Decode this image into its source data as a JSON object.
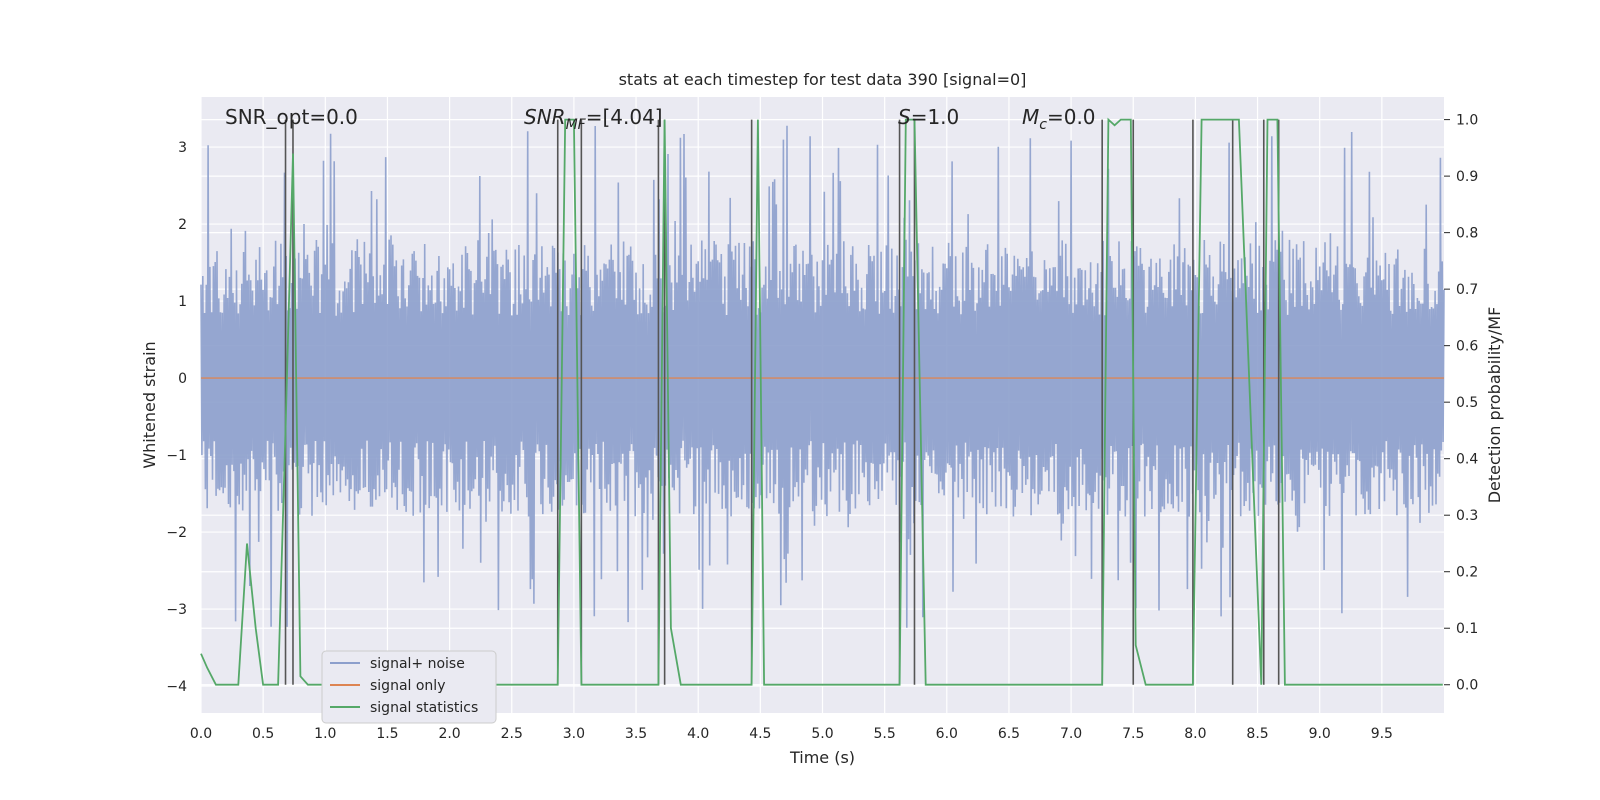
{
  "chart_data": {
    "type": "line",
    "title": "stats at each timestep for test data 390 [signal=0]",
    "xlabel": "Time (s)",
    "ylabel": "Whitened strain",
    "ylabel_right": "Detection probability/MF",
    "xlim": [
      0.0,
      10.0
    ],
    "ylim": [
      -4.35,
      3.65
    ],
    "ylim_right": [
      -0.05,
      1.04
    ],
    "x_ticks": [
      "0.0",
      "0.5",
      "1.0",
      "1.5",
      "2.0",
      "2.5",
      "3.0",
      "3.5",
      "4.0",
      "4.5",
      "5.0",
      "5.5",
      "6.0",
      "6.5",
      "7.0",
      "7.5",
      "8.0",
      "8.5",
      "9.0",
      "9.5"
    ],
    "y_ticks": [
      "3",
      "2",
      "1",
      "0",
      "−1",
      "−2",
      "−3",
      "−4"
    ],
    "y_tick_values": [
      3,
      2,
      1,
      0,
      -1,
      -2,
      -3,
      -4
    ],
    "y_ticks_right": [
      "1.0",
      "0.9",
      "0.8",
      "0.7",
      "0.6",
      "0.5",
      "0.4",
      "0.3",
      "0.2",
      "0.1",
      "0.0"
    ],
    "y_tick_values_right": [
      1.0,
      0.9,
      0.8,
      0.7,
      0.6,
      0.5,
      0.4,
      0.3,
      0.2,
      0.1,
      0.0
    ],
    "grid": true,
    "legend_position": "lower-left",
    "legend": [
      "signal+ noise",
      "signal only",
      "signal statistics"
    ],
    "annotations": {
      "snr_opt": "SNR_opt=0.0",
      "snr_mf_prefix": "SNR",
      "snr_mf_sub": "MF",
      "snr_mf_value": "=[4.04]",
      "s_prefix": "S",
      "s_value": "=1.0",
      "mc_prefix": "M",
      "mc_sub": "c",
      "mc_value": "=0.0"
    },
    "noise": {
      "name": "signal+ noise",
      "color": "#8c9fcc",
      "typical_amplitude": 1.8,
      "max_amplitude": 3.3
    },
    "signal_only": {
      "name": "signal only",
      "color": "#dd8452",
      "value": 0.0
    },
    "signal_statistics": {
      "name": "signal statistics",
      "color": "#55a868",
      "x": [
        0.0,
        0.05,
        0.12,
        0.3,
        0.37,
        0.44,
        0.5,
        0.62,
        0.68,
        0.74,
        0.8,
        0.86,
        2.87,
        2.93,
        3.0,
        3.06,
        3.12,
        3.68,
        3.73,
        3.78,
        3.86,
        4.43,
        4.48,
        4.53,
        5.62,
        5.67,
        5.74,
        5.83,
        5.88,
        7.25,
        7.3,
        7.35,
        7.4,
        7.48,
        7.52,
        7.6,
        7.98,
        8.05,
        8.35,
        8.53,
        8.58,
        8.66,
        8.72,
        9.99
      ],
      "y": [
        0.055,
        0.03,
        0.0,
        0.0,
        0.25,
        0.1,
        0.0,
        0.0,
        0.45,
        0.94,
        0.015,
        0.0,
        0.0,
        1.0,
        1.0,
        0.0,
        0.0,
        0.0,
        1.0,
        0.1,
        0.0,
        0.0,
        1.0,
        0.0,
        0.0,
        1.0,
        1.0,
        0.0,
        0.0,
        0.0,
        1.0,
        0.99,
        1.0,
        1.0,
        0.07,
        0.0,
        0.0,
        1.0,
        1.0,
        0.0,
        1.0,
        1.0,
        0.0,
        0.0
      ]
    },
    "markers": {
      "color": "#555555",
      "x": [
        0.68,
        0.74,
        2.87,
        3.06,
        3.68,
        3.73,
        4.43,
        5.62,
        5.74,
        7.25,
        7.5,
        7.98,
        8.3,
        8.55,
        8.67
      ],
      "top_value": 1.0,
      "bottom_value": 0.0
    }
  }
}
